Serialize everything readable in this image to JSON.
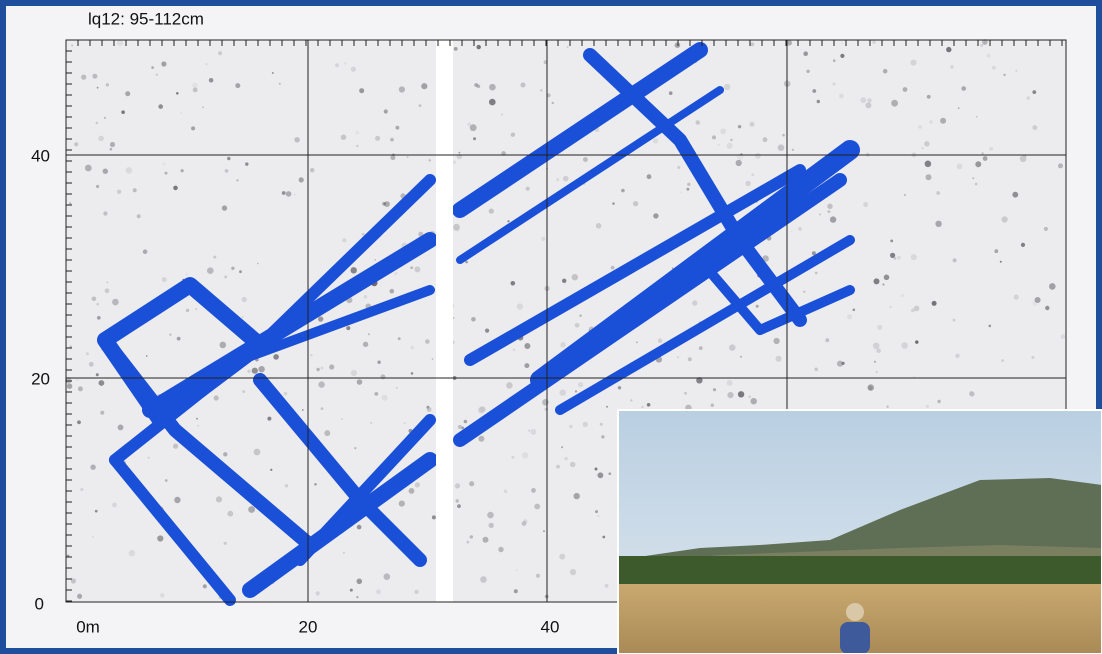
{
  "figure": {
    "title": "lq12: 95-112cm",
    "x_ticks": [
      "0m",
      "20",
      "40"
    ],
    "y_ticks": [
      "0",
      "20",
      "40"
    ]
  }
}
